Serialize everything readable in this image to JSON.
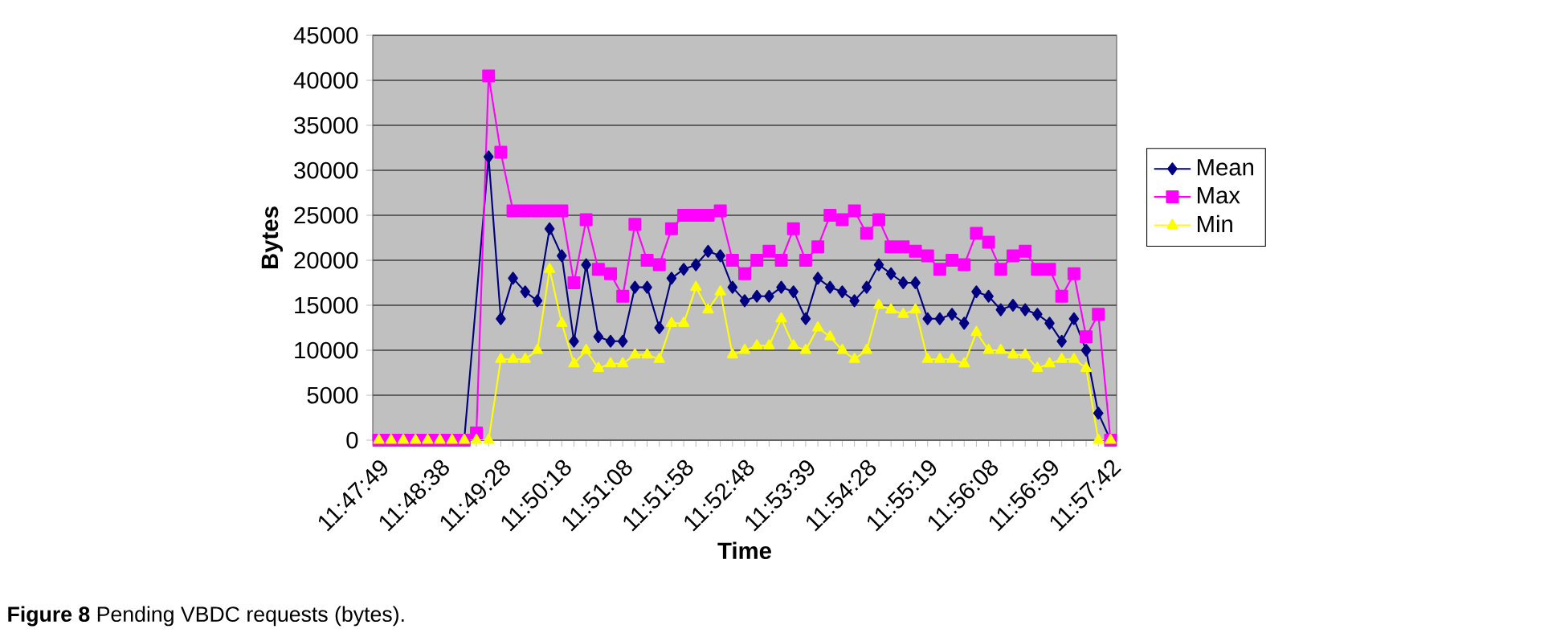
{
  "chart_data": {
    "type": "line",
    "xlabel": "Time",
    "ylabel": "Bytes",
    "categories": [
      "11:47:49",
      null,
      null,
      null,
      null,
      "11:48:38",
      null,
      null,
      null,
      null,
      "11:49:28",
      null,
      null,
      null,
      null,
      "11:50:18",
      null,
      null,
      null,
      null,
      "11:51:08",
      null,
      null,
      null,
      null,
      "11:51:58",
      null,
      null,
      null,
      null,
      "11:52:48",
      null,
      null,
      null,
      null,
      "11:53:39",
      null,
      null,
      null,
      null,
      "11:54:28",
      null,
      null,
      null,
      null,
      "11:55:19",
      null,
      null,
      null,
      null,
      "11:56:08",
      null,
      null,
      null,
      null,
      "11:56:59",
      null,
      null,
      null,
      null,
      "11:57:42"
    ],
    "series": [
      {
        "name": "Mean",
        "color": "#000080",
        "marker": "diamond",
        "values": [
          null,
          null,
          null,
          null,
          null,
          null,
          null,
          0,
          null,
          31500,
          13500,
          18000,
          16500,
          15500,
          23500,
          20500,
          11000,
          19500,
          11500,
          11000,
          11000,
          17000,
          17000,
          12500,
          18000,
          19000,
          19500,
          21000,
          20500,
          17000,
          15500,
          16000,
          16000,
          17000,
          16500,
          13500,
          18000,
          17000,
          16500,
          15500,
          17000,
          19500,
          18500,
          17500,
          17500,
          13500,
          13500,
          14000,
          13000,
          16500,
          16000,
          14500,
          15000,
          14500,
          14000,
          13000,
          11000,
          13500,
          10000,
          3000,
          0
        ]
      },
      {
        "name": "Max",
        "color": "#ff00ff",
        "marker": "square",
        "values": [
          0,
          0,
          0,
          0,
          0,
          0,
          0,
          0,
          800,
          40500,
          32000,
          25500,
          25500,
          25500,
          25500,
          25500,
          17500,
          24500,
          19000,
          18500,
          16000,
          24000,
          20000,
          19500,
          23500,
          25000,
          25000,
          25000,
          25500,
          20000,
          18500,
          20000,
          21000,
          20000,
          23500,
          20000,
          21500,
          25000,
          24500,
          25500,
          23000,
          24500,
          21500,
          21500,
          21000,
          20500,
          19000,
          20000,
          19500,
          23000,
          22000,
          19000,
          20500,
          21000,
          19000,
          19000,
          16000,
          18500,
          11500,
          14000,
          0
        ]
      },
      {
        "name": "Min",
        "color": "#ffff00",
        "marker": "triangle",
        "values": [
          0,
          0,
          0,
          0,
          0,
          0,
          0,
          0,
          0,
          0,
          9000,
          9000,
          9000,
          10000,
          19000,
          13000,
          8500,
          10000,
          8000,
          8500,
          8500,
          9500,
          9500,
          9000,
          13000,
          13000,
          17000,
          14500,
          16500,
          9500,
          10000,
          10500,
          10500,
          13500,
          10500,
          10000,
          12500,
          11500,
          10000,
          9000,
          10000,
          15000,
          14500,
          14000,
          14500,
          9000,
          9000,
          9000,
          8500,
          12000,
          10000,
          10000,
          9500,
          9500,
          8000,
          8500,
          9000,
          9000,
          8000,
          0,
          0
        ]
      }
    ],
    "ylim": [
      0,
      45000
    ],
    "yticks": [
      0,
      5000,
      10000,
      15000,
      20000,
      25000,
      30000,
      35000,
      40000,
      45000
    ],
    "grid": "y",
    "legend": "right",
    "annotations": [
      "**Figure 8** Pending VBDC requests (bytes)."
    ]
  }
}
